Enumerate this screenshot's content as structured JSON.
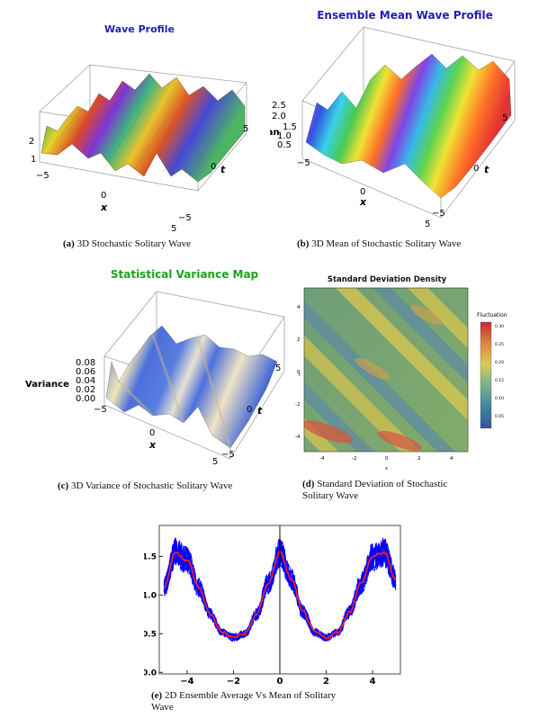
{
  "panel_a": {
    "title": "Wave Profile",
    "z_ticks": [
      "2",
      "1"
    ],
    "x_ticks": [
      "−5",
      "0",
      "5"
    ],
    "x_label": "x",
    "t_ticks": [
      "5",
      "0",
      "−5"
    ],
    "t_label": "t",
    "caption_tag": "(a)",
    "caption": "3D Stochastic Solitary Wave"
  },
  "panel_b": {
    "title": "Ensemble Mean Wave Profile",
    "z_label": "Mean",
    "z_ticks": [
      "2.5",
      "2.0",
      "1.5",
      "1.0",
      "0.5"
    ],
    "x_ticks": [
      "−5",
      "0",
      "5"
    ],
    "x_label": "x",
    "t_ticks": [
      "5",
      "0",
      "−5"
    ],
    "t_label": "t",
    "caption_tag": "(b)",
    "caption": "3D Mean of Stochastic Solitary Wave"
  },
  "panel_c": {
    "title": "Statistical Variance Map",
    "z_label": "Variance",
    "z_ticks": [
      "0.08",
      "0.06",
      "0.04",
      "0.02",
      "0.00"
    ],
    "x_ticks": [
      "−5",
      "0",
      "5"
    ],
    "x_label": "x",
    "t_ticks": [
      "5",
      "0",
      "−5"
    ],
    "t_label": "t",
    "caption_tag": "(c)",
    "caption": "3D Variance of Stochastic Solitary Wave"
  },
  "panel_d": {
    "title": "Standard Deviation Density",
    "colorbar_title": "Fluctuation",
    "colorbar_ticks": [
      "0.30",
      "0.25",
      "0.20",
      "0.15",
      "0.10",
      "0.05"
    ],
    "y_ticks": [
      "4",
      "2",
      "0",
      "-2",
      "-4"
    ],
    "x_ticks": [
      "-4",
      "-2",
      "0",
      "2",
      "4"
    ],
    "x_label": "x",
    "y_label": "t",
    "caption_tag": "(d)",
    "caption_line1": "Standard Deviation of Stochastic",
    "caption_line2": "Solitary Wave"
  },
  "panel_e": {
    "caption_tag": "(e)",
    "caption_line1": "2D Ensemble Average Vs Mean of Solitary",
    "caption_line2": "Wave"
  },
  "colors": {
    "title_blue": "#1f1fb4",
    "title_green": "#1aa51a",
    "noisy_series": "#0000ff",
    "mean_series": "#ff2020"
  },
  "chart_data": {
    "type": "line",
    "x_ticks": [
      "−4",
      "−2",
      "0",
      "2",
      "4"
    ],
    "y_ticks": [
      "0.0",
      "0.5",
      "1.0",
      "1.5"
    ],
    "xlim": [
      -5.2,
      5.2
    ],
    "ylim": [
      -0.02,
      1.9
    ],
    "grid": false,
    "series": [
      {
        "style": "noisy band",
        "x": [
          -5,
          -4.5,
          -4,
          -3.5,
          -3,
          -2.5,
          -2,
          -1.5,
          -1,
          -0.5,
          0,
          0.5,
          1,
          1.5,
          2,
          2.5,
          3,
          3.5,
          4,
          4.5,
          5
        ],
        "values": [
          1.1,
          1.55,
          1.45,
          1.1,
          0.75,
          0.52,
          0.45,
          0.5,
          0.75,
          1.15,
          1.55,
          1.2,
          0.78,
          0.52,
          0.45,
          0.52,
          0.78,
          1.15,
          1.5,
          1.55,
          1.2
        ]
      },
      {
        "style": "mean line",
        "x": [
          -5,
          -4.5,
          -4,
          -3.5,
          -3,
          -2.5,
          -2,
          -1.5,
          -1,
          -0.5,
          0,
          0.5,
          1,
          1.5,
          2,
          2.5,
          3,
          3.5,
          4,
          4.5,
          5
        ],
        "values": [
          1.1,
          1.55,
          1.45,
          1.1,
          0.75,
          0.52,
          0.45,
          0.5,
          0.75,
          1.15,
          1.55,
          1.2,
          0.78,
          0.52,
          0.45,
          0.52,
          0.78,
          1.15,
          1.5,
          1.55,
          1.2
        ]
      }
    ]
  }
}
